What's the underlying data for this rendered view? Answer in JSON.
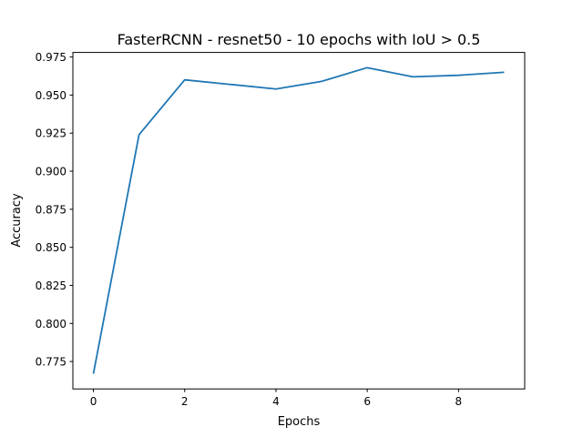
{
  "chart_data": {
    "type": "line",
    "title": "FasterRCNN - resnet50 - 10 epochs with IoU > 0.5",
    "xlabel": "Epochs",
    "ylabel": "Accuracy",
    "x": [
      0,
      1,
      2,
      3,
      4,
      5,
      6,
      7,
      8,
      9
    ],
    "series": [
      {
        "values": [
          0.767,
          0.924,
          0.96,
          0.957,
          0.954,
          0.959,
          0.968,
          0.962,
          0.963,
          0.965
        ],
        "color": "#1f77b4"
      }
    ],
    "xlim": [
      -0.45,
      9.45
    ],
    "ylim": [
      0.757,
      0.978
    ],
    "xticks": [
      0,
      2,
      4,
      6,
      8
    ],
    "xtick_labels": [
      "0",
      "2",
      "4",
      "6",
      "8"
    ],
    "yticks": [
      0.775,
      0.8,
      0.825,
      0.85,
      0.875,
      0.9,
      0.925,
      0.95,
      0.975
    ],
    "ytick_labels": [
      "0.775",
      "0.800",
      "0.825",
      "0.850",
      "0.875",
      "0.900",
      "0.925",
      "0.950",
      "0.975"
    ],
    "grid": false,
    "legend": "none"
  }
}
